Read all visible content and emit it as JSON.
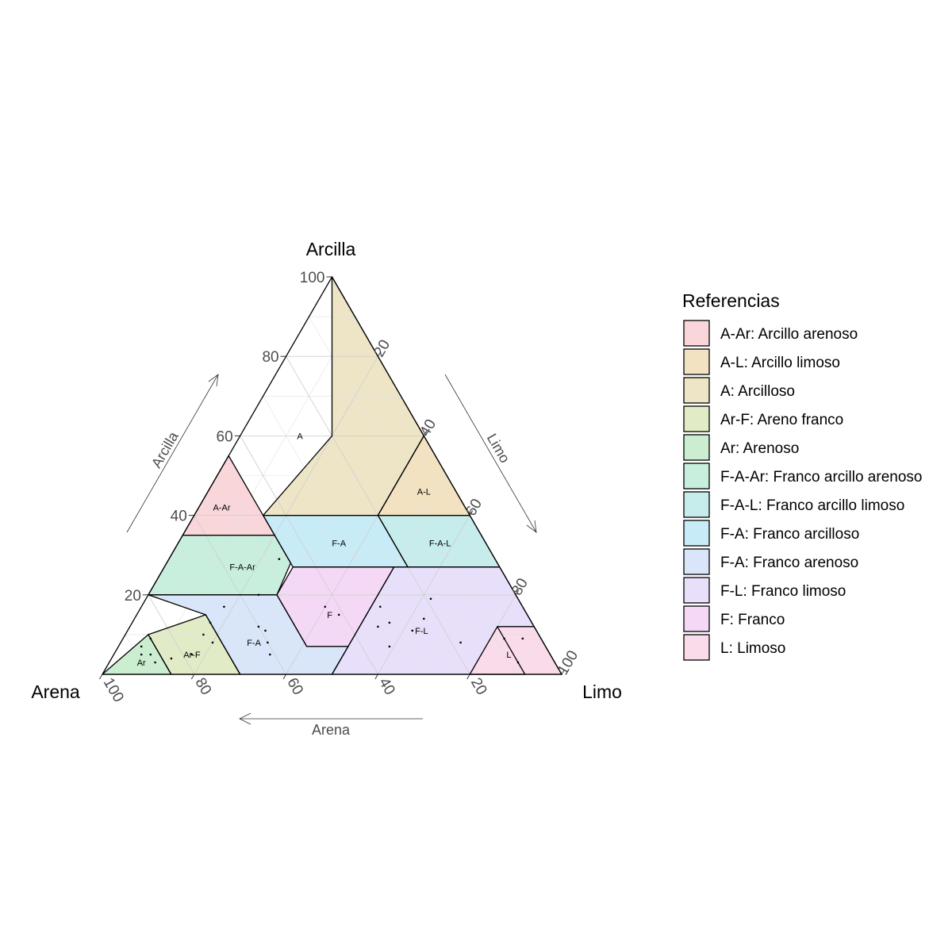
{
  "chart_data": {
    "type": "ternary",
    "title": "",
    "axes": {
      "top": "Arcilla",
      "left": "Arena",
      "right": "Limo",
      "arrow_top": "Arcilla",
      "arrow_right": "Limo",
      "arrow_bottom": "Arena"
    },
    "ticks": [
      "20",
      "40",
      "60",
      "80",
      "100"
    ],
    "tick_values": [
      20,
      40,
      60,
      80,
      100
    ],
    "grid": true,
    "legend": {
      "title": "Referencias",
      "position": "right",
      "items": [
        {
          "label": "A-Ar: Arcillo arenoso",
          "color": "#f9d6d9"
        },
        {
          "label": "A-L: Arcillo limoso",
          "color": "#f2e2c2"
        },
        {
          "label": "A: Arcilloso",
          "color": "#ede5c6"
        },
        {
          "label": "Ar-F: Areno franco",
          "color": "#e1ecc7"
        },
        {
          "label": "Ar: Arenoso",
          "color": "#cbedd0"
        },
        {
          "label": "F-A-Ar: Franco arcillo arenoso",
          "color": "#c8eedd"
        },
        {
          "label": "F-A-L: Franco arcillo limoso",
          "color": "#c6ecec"
        },
        {
          "label": "F-A: Franco arcilloso",
          "color": "#c8ecf7"
        },
        {
          "label": "F-A: Franco arenoso",
          "color": "#d9e6fa"
        },
        {
          "label": "F-L: Franco limoso",
          "color": "#e8e0fb"
        },
        {
          "label": "F: Franco",
          "color": "#f5d8f6"
        },
        {
          "label": "L: Limoso",
          "color": "#f9dbe9"
        }
      ]
    },
    "regions": [
      {
        "label": "A",
        "fill": "#ede5c6",
        "vertices": [
          [
            60,
            20,
            20
          ],
          [
            40,
            45,
            15
          ],
          [
            40,
            20,
            40
          ],
          [
            60,
            0,
            40
          ],
          [
            100,
            0,
            0
          ]
        ],
        "label_at": [
          60,
          27,
          13
        ]
      },
      {
        "label": "A-L",
        "fill": "#f2e2c2",
        "vertices": [
          [
            60,
            0,
            40
          ],
          [
            40,
            20,
            40
          ],
          [
            40,
            0,
            60
          ]
        ],
        "label_at": [
          46,
          7,
          47
        ]
      },
      {
        "label": "A-Ar",
        "fill": "#f9d6d9",
        "vertices": [
          [
            55,
            45,
            0
          ],
          [
            35,
            65,
            0
          ],
          [
            35,
            45,
            20
          ]
        ],
        "label_at": [
          42,
          53,
          5
        ]
      },
      {
        "label": "F-A",
        "fill": "#c8ecf7",
        "vertices": [
          [
            40,
            45,
            15
          ],
          [
            40,
            20,
            40
          ],
          [
            27,
            20,
            53
          ],
          [
            27,
            45,
            28
          ]
        ],
        "label_at": [
          33,
          32,
          35
        ]
      },
      {
        "label": "F-A-L",
        "fill": "#c6ecec",
        "vertices": [
          [
            40,
            20,
            40
          ],
          [
            40,
            0,
            60
          ],
          [
            27,
            0,
            73
          ],
          [
            27,
            20,
            53
          ]
        ],
        "label_at": [
          33,
          10,
          57
        ]
      },
      {
        "label": "F-A-Ar",
        "fill": "#c8eedd",
        "vertices": [
          [
            35,
            65,
            0
          ],
          [
            35,
            45,
            20
          ],
          [
            28,
            45,
            27
          ],
          [
            20,
            52,
            28
          ],
          [
            20,
            80,
            0
          ]
        ],
        "label_at": [
          27,
          56,
          17
        ]
      },
      {
        "label": "F",
        "fill": "#f5d8f6",
        "vertices": [
          [
            27,
            45,
            28
          ],
          [
            27,
            23,
            50
          ],
          [
            7,
            43,
            50
          ],
          [
            7,
            52,
            41
          ],
          [
            20,
            52,
            28
          ]
        ],
        "label_at": [
          15,
          43,
          42
        ]
      },
      {
        "label": "F-L",
        "fill": "#e8e0fb",
        "vertices": [
          [
            27,
            23,
            50
          ],
          [
            27,
            0,
            73
          ],
          [
            12,
            0,
            88
          ],
          [
            12,
            8,
            80
          ],
          [
            0,
            8,
            92
          ],
          [
            0,
            50,
            50
          ],
          [
            7,
            43,
            50
          ]
        ],
        "label_at": [
          11,
          25,
          64
        ]
      },
      {
        "label": "L",
        "fill": "#f9dbe9",
        "vertices": [
          [
            12,
            8,
            80
          ],
          [
            12,
            0,
            88
          ],
          [
            0,
            0,
            100
          ],
          [
            0,
            20,
            80
          ]
        ],
        "label_at": [
          5,
          9,
          86
        ]
      },
      {
        "label": "F-A",
        "fill": "#d9e6fa",
        "vertices": [
          [
            20,
            80,
            0
          ],
          [
            20,
            52,
            28
          ],
          [
            7,
            52,
            41
          ],
          [
            7,
            43,
            50
          ],
          [
            0,
            50,
            50
          ],
          [
            0,
            70,
            30
          ],
          [
            15,
            70,
            15
          ]
        ],
        "label_at": [
          8,
          63,
          29
        ]
      },
      {
        "label": "Ar-F",
        "fill": "#e1ecc7",
        "vertices": [
          [
            15,
            70,
            15
          ],
          [
            0,
            70,
            30
          ],
          [
            0,
            85,
            15
          ],
          [
            10,
            85,
            5
          ]
        ],
        "label_at": [
          5,
          78,
          17
        ]
      },
      {
        "label": "Ar",
        "fill": "#cbedd0",
        "vertices": [
          [
            10,
            85,
            5
          ],
          [
            0,
            85,
            15
          ],
          [
            0,
            100,
            0
          ]
        ],
        "label_at": [
          3,
          90,
          7
        ]
      }
    ],
    "points": [
      [
        29,
        47,
        24
      ],
      [
        20,
        56,
        24
      ],
      [
        17,
        65,
        18
      ],
      [
        13,
        70,
        17
      ],
      [
        10,
        73,
        17
      ],
      [
        8,
        72,
        20
      ],
      [
        5,
        78,
        17
      ],
      [
        4,
        83,
        13
      ],
      [
        9,
        85,
        6
      ],
      [
        5,
        87,
        8
      ],
      [
        3,
        87,
        10
      ],
      [
        7,
        88,
        5
      ],
      [
        5,
        89,
        6
      ],
      [
        11,
        59,
        30
      ],
      [
        12,
        60,
        28
      ],
      [
        8,
        60,
        32
      ],
      [
        5,
        61,
        34
      ],
      [
        17,
        43,
        40
      ],
      [
        15,
        41,
        44
      ],
      [
        12,
        34,
        54
      ],
      [
        7,
        34,
        59
      ],
      [
        17,
        31,
        52
      ],
      [
        13,
        31,
        56
      ],
      [
        11,
        27,
        62
      ],
      [
        14,
        23,
        63
      ],
      [
        19,
        19,
        62
      ],
      [
        8,
        18,
        74
      ],
      [
        3,
        8,
        89
      ],
      [
        9,
        4,
        87
      ],
      [
        9,
        8,
        83
      ]
    ]
  }
}
